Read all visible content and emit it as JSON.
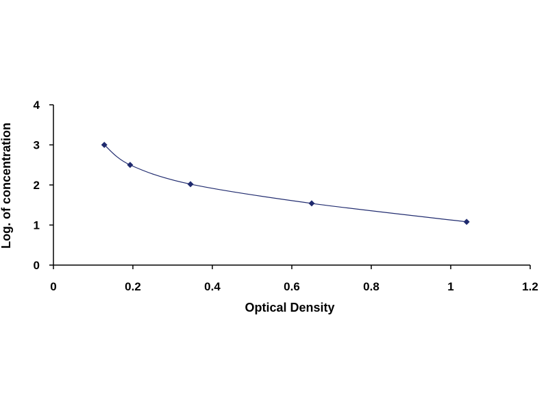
{
  "chart_data": {
    "type": "scatter",
    "title": "",
    "xlabel": "Optical Density",
    "ylabel": "Log. of concentration",
    "xlim": [
      0,
      1.2
    ],
    "ylim": [
      0,
      4
    ],
    "x_ticks": [
      0,
      0.2,
      0.4,
      0.6,
      0.8,
      1,
      1.2
    ],
    "y_ticks": [
      0,
      1,
      2,
      3,
      4
    ],
    "x_tick_labels": [
      "0",
      "0.2",
      "0.4",
      "0.6",
      "0.8",
      "1",
      "1.2"
    ],
    "y_tick_labels": [
      "0",
      "1",
      "2",
      "3",
      "4"
    ],
    "grid": false,
    "legend": "none",
    "marker_color": "#1f2a6e",
    "line_color": "#1f2a6e",
    "series": [
      {
        "x": [
          0.128,
          0.193,
          0.345,
          0.65,
          1.04
        ],
        "y": [
          3.0,
          2.5,
          2.02,
          1.54,
          1.08
        ],
        "trendline": true
      }
    ]
  }
}
